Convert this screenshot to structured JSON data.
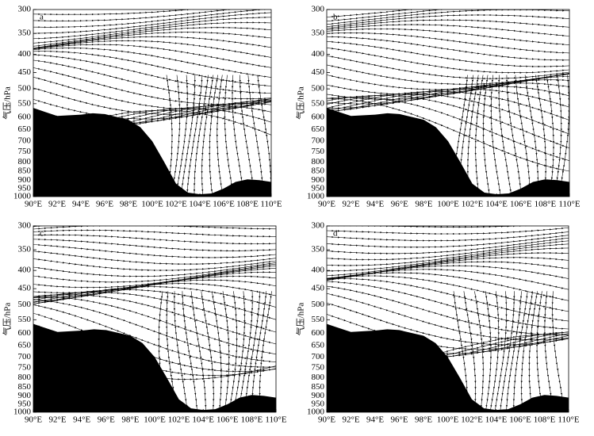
{
  "chart_data": [
    {
      "type": "streamline",
      "panel_label": "a",
      "ylabel": "气压/hPa",
      "yscale": "log",
      "yinverted": true,
      "xlim": [
        90,
        110
      ],
      "ylim": [
        300,
        1000
      ],
      "xticks": [
        {
          "value": 90,
          "label": "90°E"
        },
        {
          "value": 92,
          "label": "92°E"
        },
        {
          "value": 94,
          "label": "94°E"
        },
        {
          "value": 96,
          "label": "96°E"
        },
        {
          "value": 98,
          "label": "98°E"
        },
        {
          "value": 100,
          "label": "100°E"
        },
        {
          "value": 102,
          "label": "102°E"
        },
        {
          "value": 104,
          "label": "104°E"
        },
        {
          "value": 106,
          "label": "106°E"
        },
        {
          "value": 108,
          "label": "108°E"
        },
        {
          "value": 110,
          "label": "110°E"
        }
      ],
      "yticks": [
        300,
        350,
        400,
        450,
        500,
        550,
        600,
        650,
        700,
        750,
        800,
        850,
        900,
        950,
        1000
      ],
      "terrain": {
        "x": [
          90,
          91,
          92,
          94,
          95,
          96,
          98,
          99,
          100,
          101,
          102,
          103,
          104,
          105,
          106,
          107,
          108,
          109,
          110
        ],
        "values": [
          565,
          580,
          595,
          590,
          585,
          588,
          610,
          640,
          700,
          800,
          920,
          975,
          985,
          980,
          950,
          910,
          895,
          900,
          910
        ]
      }
    },
    {
      "type": "streamline",
      "panel_label": "b",
      "ylabel": "气压/hPa",
      "yscale": "log",
      "yinverted": true,
      "xlim": [
        90,
        110
      ],
      "ylim": [
        300,
        1000
      ],
      "xticks": [
        {
          "value": 90,
          "label": "90°E"
        },
        {
          "value": 92,
          "label": "92°E"
        },
        {
          "value": 94,
          "label": "94°E"
        },
        {
          "value": 96,
          "label": "96°E"
        },
        {
          "value": 98,
          "label": "98°E"
        },
        {
          "value": 100,
          "label": "100°E"
        },
        {
          "value": 102,
          "label": "102°E"
        },
        {
          "value": 104,
          "label": "104°E"
        },
        {
          "value": 106,
          "label": "106°E"
        },
        {
          "value": 108,
          "label": "108°E"
        },
        {
          "value": 110,
          "label": "110°E"
        }
      ],
      "yticks": [
        300,
        350,
        400,
        450,
        500,
        550,
        600,
        650,
        700,
        750,
        800,
        850,
        900,
        950,
        1000
      ],
      "terrain": {
        "x": [
          90,
          91,
          92,
          94,
          95,
          96,
          98,
          99,
          100,
          101,
          102,
          103,
          104,
          105,
          106,
          107,
          108,
          109,
          110
        ],
        "values": [
          565,
          580,
          595,
          590,
          585,
          588,
          610,
          640,
          700,
          800,
          920,
          975,
          985,
          980,
          950,
          910,
          895,
          900,
          910
        ]
      }
    },
    {
      "type": "streamline",
      "panel_label": "c",
      "ylabel": "气压/hPa",
      "yscale": "log",
      "yinverted": true,
      "xlim": [
        90,
        110
      ],
      "ylim": [
        300,
        1000
      ],
      "xticks": [
        {
          "value": 90,
          "label": "90°E"
        },
        {
          "value": 92,
          "label": "92°E"
        },
        {
          "value": 94,
          "label": "94°E"
        },
        {
          "value": 96,
          "label": "96°E"
        },
        {
          "value": 98,
          "label": "98°E"
        },
        {
          "value": 100,
          "label": "100°E"
        },
        {
          "value": 102,
          "label": "102°E"
        },
        {
          "value": 104,
          "label": "104°E"
        },
        {
          "value": 106,
          "label": "106°E"
        },
        {
          "value": 108,
          "label": "108°E"
        },
        {
          "value": 110,
          "label": "110°E"
        }
      ],
      "yticks": [
        300,
        350,
        400,
        450,
        500,
        550,
        600,
        650,
        700,
        750,
        800,
        850,
        900,
        950,
        1000
      ],
      "terrain": {
        "x": [
          90,
          91,
          92,
          94,
          95,
          96,
          98,
          99,
          100,
          101,
          102,
          103,
          104,
          105,
          106,
          107,
          108,
          109,
          110
        ],
        "values": [
          565,
          580,
          595,
          590,
          585,
          588,
          610,
          640,
          700,
          800,
          920,
          975,
          985,
          980,
          950,
          910,
          895,
          900,
          910
        ]
      }
    },
    {
      "type": "streamline",
      "panel_label": "d",
      "ylabel": "气压/hPa",
      "yscale": "log",
      "yinverted": true,
      "xlim": [
        90,
        110
      ],
      "ylim": [
        300,
        1000
      ],
      "xticks": [
        {
          "value": 90,
          "label": "90°E"
        },
        {
          "value": 92,
          "label": "92°E"
        },
        {
          "value": 94,
          "label": "94°E"
        },
        {
          "value": 96,
          "label": "96°E"
        },
        {
          "value": 98,
          "label": "98°E"
        },
        {
          "value": 100,
          "label": "100°E"
        },
        {
          "value": 102,
          "label": "102°E"
        },
        {
          "value": 104,
          "label": "104°E"
        },
        {
          "value": 106,
          "label": "106°E"
        },
        {
          "value": 108,
          "label": "108°E"
        },
        {
          "value": 110,
          "label": "110°E"
        }
      ],
      "yticks": [
        300,
        350,
        400,
        450,
        500,
        550,
        600,
        650,
        700,
        750,
        800,
        850,
        900,
        950,
        1000
      ],
      "terrain": {
        "x": [
          90,
          91,
          92,
          94,
          95,
          96,
          98,
          99,
          100,
          101,
          102,
          103,
          104,
          105,
          106,
          107,
          108,
          109,
          110
        ],
        "values": [
          565,
          580,
          595,
          590,
          585,
          588,
          610,
          640,
          700,
          800,
          920,
          975,
          985,
          980,
          950,
          910,
          895,
          900,
          910
        ]
      }
    }
  ]
}
